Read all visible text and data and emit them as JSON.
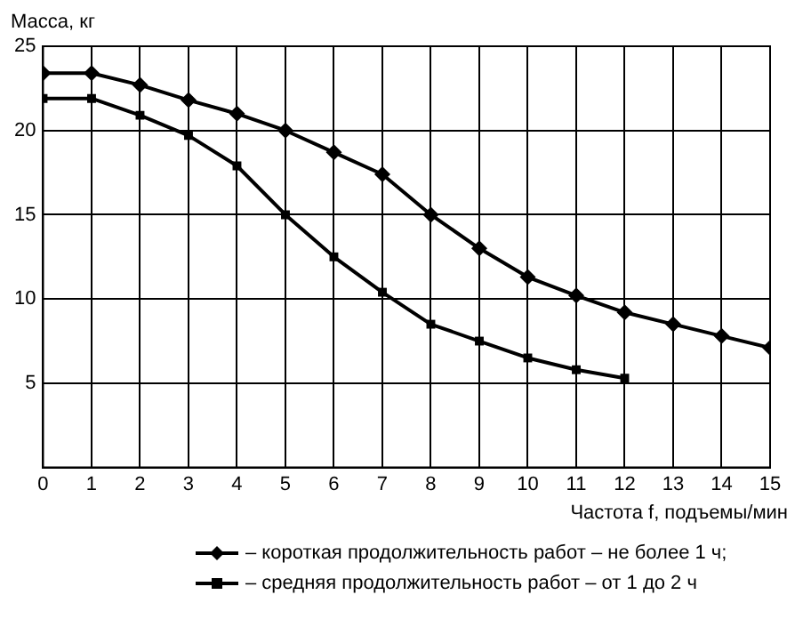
{
  "chart_data": {
    "type": "line",
    "ylabel": "Масса, кг",
    "xlabel": "Частота f, подъемы/мин",
    "x": [
      0,
      1,
      2,
      3,
      4,
      5,
      6,
      7,
      8,
      9,
      10,
      11,
      12,
      13,
      14,
      15
    ],
    "series": [
      {
        "name": "– короткая продолжительность работ – не более 1 ч;",
        "color": "#000000",
        "marker": "diamond",
        "values": [
          23.4,
          23.4,
          22.7,
          21.8,
          21,
          20,
          18.7,
          17.4,
          15,
          13,
          11.3,
          10.2,
          9.2,
          8.5,
          7.8,
          7.1
        ]
      },
      {
        "name": "– средняя продолжительность работ – от 1 до 2 ч",
        "color": "#000000",
        "marker": "square",
        "values": [
          21.9,
          21.9,
          20.9,
          19.7,
          17.9,
          15,
          12.5,
          10.4,
          8.5,
          7.5,
          6.5,
          5.8,
          5.3,
          null,
          null,
          null
        ]
      }
    ],
    "xlim": [
      0,
      15
    ],
    "xticks": [
      0,
      1,
      2,
      3,
      4,
      5,
      6,
      7,
      8,
      9,
      10,
      11,
      12,
      13,
      14,
      15
    ],
    "ylim": [
      0,
      25
    ],
    "yticks": [
      {
        "value": 0,
        "label": null
      },
      5,
      10,
      15,
      20,
      25
    ],
    "grid": true,
    "legend": "bottom",
    "line_style": "solid"
  }
}
